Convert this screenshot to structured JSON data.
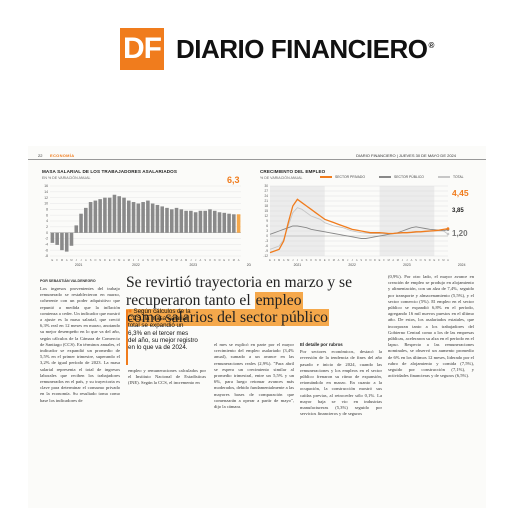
{
  "logo": {
    "mark": "DF",
    "name": "DIARIO FINANCIERO",
    "reg": "®"
  },
  "folio": {
    "page": "22",
    "section": "ECONOMÍA",
    "right": "DIARIO FINANCIERO | JUEVES 30 DE MAYO DE 2024"
  },
  "chart1": {
    "title": "MASA SALARIAL DE LOS TRABAJADORES ASALARIADOS",
    "subtitle": "EN % DE VARIACIÓN ANUAL",
    "highlight": "6,3"
  },
  "chart2": {
    "title": "CRECIMIENTO DEL EMPLEO",
    "subtitle": "% DE VARIACIÓN ANUAL",
    "legend": [
      "SECTOR PRIVADO",
      "SECTOR PÚBLICO",
      "TOTAL"
    ],
    "end_labels": [
      "4,45",
      "3,85",
      "1,20"
    ]
  },
  "colors": {
    "brand": "#f07c1d",
    "bar": "#8a8a8a",
    "highlight": "#f5a84b",
    "line_private": "#f07c1d",
    "line_public": "#888888",
    "line_total": "#c7c7c7"
  },
  "chart_data": [
    {
      "type": "bar",
      "title": "MASA SALARIAL DE LOS TRABAJADORES ASALARIADOS",
      "subtitle": "EN % DE VARIACIÓN ANUAL",
      "ylim": [
        -8,
        16
      ],
      "yticks": [
        -8,
        -6,
        -4,
        -2,
        0,
        2,
        4,
        6,
        8,
        10,
        12,
        14,
        16
      ],
      "years": [
        "2021",
        "2022",
        "2023",
        "2024"
      ],
      "month_letters": [
        "E",
        "F",
        "M",
        "A",
        "M",
        "J",
        "J",
        "A",
        "S",
        "O",
        "N",
        "D",
        "E",
        "F",
        "M",
        "A",
        "M",
        "J",
        "J",
        "A",
        "S",
        "O",
        "N",
        "D",
        "E",
        "F",
        "M",
        "A",
        "M",
        "J",
        "J",
        "A",
        "S",
        "O",
        "N",
        "D",
        "E",
        "F",
        "M",
        "A"
      ],
      "values": [
        -3.5,
        -4.2,
        -6.0,
        -6.5,
        -4.5,
        2.5,
        6.5,
        8.5,
        10.5,
        11.0,
        11.5,
        12.0,
        12.0,
        13.0,
        12.5,
        12.0,
        11.0,
        10.5,
        10.0,
        10.5,
        11.0,
        10.0,
        9.5,
        9.0,
        8.5,
        8.0,
        8.5,
        8.0,
        7.5,
        7.5,
        7.0,
        7.5,
        7.5,
        8.0,
        7.5,
        7.0,
        6.8,
        6.5,
        6.3,
        6.3
      ],
      "highlight_last": 6.3,
      "grid": true
    },
    {
      "type": "line",
      "title": "CRECIMIENTO DEL EMPLEO",
      "subtitle": "% DE VARIACIÓN ANUAL",
      "ylim": [
        -12,
        30
      ],
      "yticks": [
        -12,
        -9,
        -6,
        -3,
        0,
        3,
        6,
        9,
        12,
        15,
        18,
        21,
        24,
        27,
        30
      ],
      "years": [
        "2021",
        "2022",
        "2023",
        "2024"
      ],
      "month_letters": [
        "E",
        "F",
        "M",
        "A",
        "M",
        "J",
        "J",
        "A",
        "S",
        "O",
        "N",
        "D",
        "E",
        "F",
        "M",
        "A",
        "M",
        "J",
        "J",
        "A",
        "S",
        "O",
        "N",
        "D",
        "E",
        "F",
        "M",
        "A",
        "M",
        "J",
        "J",
        "A",
        "S",
        "O",
        "N",
        "D",
        "E",
        "F",
        "M",
        "A"
      ],
      "series": [
        {
          "name": "SECTOR PRIVADO",
          "values": [
            -10,
            -9,
            -8,
            -3,
            8,
            18,
            22,
            20,
            18,
            16,
            14,
            12,
            10,
            9,
            8,
            7,
            6,
            5,
            4,
            3.5,
            3,
            2.5,
            2,
            2,
            2,
            1.8,
            1.5,
            1.5,
            1.8,
            2,
            2,
            2.2,
            2.5,
            2.5,
            2.8,
            3,
            3.2,
            3.5,
            4,
            4.45
          ]
        },
        {
          "name": "SECTOR PÚBLICO",
          "values": [
            1,
            2,
            3,
            4,
            5,
            6,
            6,
            5.5,
            5,
            4,
            3.5,
            3,
            2.5,
            2,
            1.5,
            1,
            0.5,
            0,
            -0.5,
            -1,
            -1.5,
            -1.5,
            -1,
            -0.5,
            0,
            0.5,
            1,
            1.5,
            2,
            3,
            4,
            5,
            5.5,
            5,
            4.5,
            4,
            3.8,
            3.5,
            3.2,
            3.85
          ]
        },
        {
          "name": "TOTAL",
          "values": [
            -8,
            -7,
            -6,
            -2,
            6,
            14,
            17,
            16,
            14,
            12,
            11,
            10,
            8,
            7,
            6,
            5.5,
            5,
            4,
            3,
            2.5,
            2,
            1.8,
            1.5,
            1.5,
            1.5,
            1.4,
            1.3,
            1.3,
            1.5,
            1.8,
            2,
            2,
            2.2,
            2.5,
            2.5,
            2.8,
            3,
            3,
            3,
            1.2
          ]
        }
      ],
      "end_labels": [
        "4,45",
        "3,85",
        "1,20"
      ],
      "shaded_years": [
        "2021",
        "2023"
      ],
      "grid": true
    }
  ],
  "article": {
    "byline": "POR SEBASTIÁN VALDENEGRO",
    "headline_pre": "Se revirtió trayectoria en marzo y se recuperaron tanto el ",
    "headline_hl1": "empleo",
    "headline_hl2": "como salarios del sector público",
    "lead": "Según cálculos de la CCS, la masa salarial total se expandió un 6,3% en el tercer mes del año, su mejor registro en lo que va de 2024.",
    "col1": "Los ingresos provenientes del trabajo remunerado se restablecieron en marzo, coherente con un poder adquisitivo que repuntó a medida que la inflación comienza a ceder. Un indicador que mostró a ajuste es la masa salarial, que creció 6,3% real en 12 meses en marzo, anotando su mejor desempeño en lo que va del año, según cálculos de la Cámara de Comercio de Santiago (CCS). En términos anuales, el indicador se expandió un promedio de 5,5% en el primer trimestre, superando el 3,2% de igual período de 2023. La masa salarial representa el total de ingresos laborales que reciben los trabajadores remunerados en el país, y su trayectoria es clave para determinar el consumo privado en la economía. Su resultado toma como base los indicadores de",
    "col2": "empleo y remuneraciones calculados por el Instituto Nacional de Estadísticas (INE). Según la CCS, el incremento en",
    "col3": "el mes se explicó en parte por el mayor crecimiento del empleo asalariado (3,4% anual), sumado a un avance en las remuneraciones reales (2,9%). \"Para abril se espera un crecimiento similar al promedio trimestral, entre un 5,5% y un 6%, para luego retomar avances más moderados, debido fundamentalmente a las mayores bases de comparación que comenzarán a operar a partir de mayo\", dijo la cámara.",
    "col4_head": "El detalle por rubros",
    "col4": "Por sectores económicos, destacó la reversión de la tendencia de fines del año pasado e inicio de 2024, cuando las remuneraciones y los empleos en el sector público frenaron su ritmo de expansión, retomándolo en marzo. En cuanto a la ocupación, la construcción mostró sus caídas previas, al retroceder sólo 0,1%. La mayor baja se vio en industrias manufactureras (5,3%) seguido por servicios financieros y de seguros",
    "col5": "(0,9%). Por otro lado, el mayor avance en creación de empleo se produjo en alojamiento y alimentación, con un alza de 7,4%, seguido por transporte y almacenamiento (5,5%), y el sector comercio (5%). El empleo en el sector público se expandió 6,8% en el período, agregando 16 mil nuevos puestos en el último año. De estos, los asalariados estatales, que incorporan tanto a los trabajadores del Gobierno Central como a los de las empresas públicas, aceleraron su alza en el período en el lapso. Respecto a las remuneraciones nominales, se observó un aumento promedio de 6% en los últimos 12 meses, liderado por el rubro de alojamiento y comida (7,5%), seguido por construcción (7,1%), y actividades financieras y de seguros (6,5%)."
  }
}
